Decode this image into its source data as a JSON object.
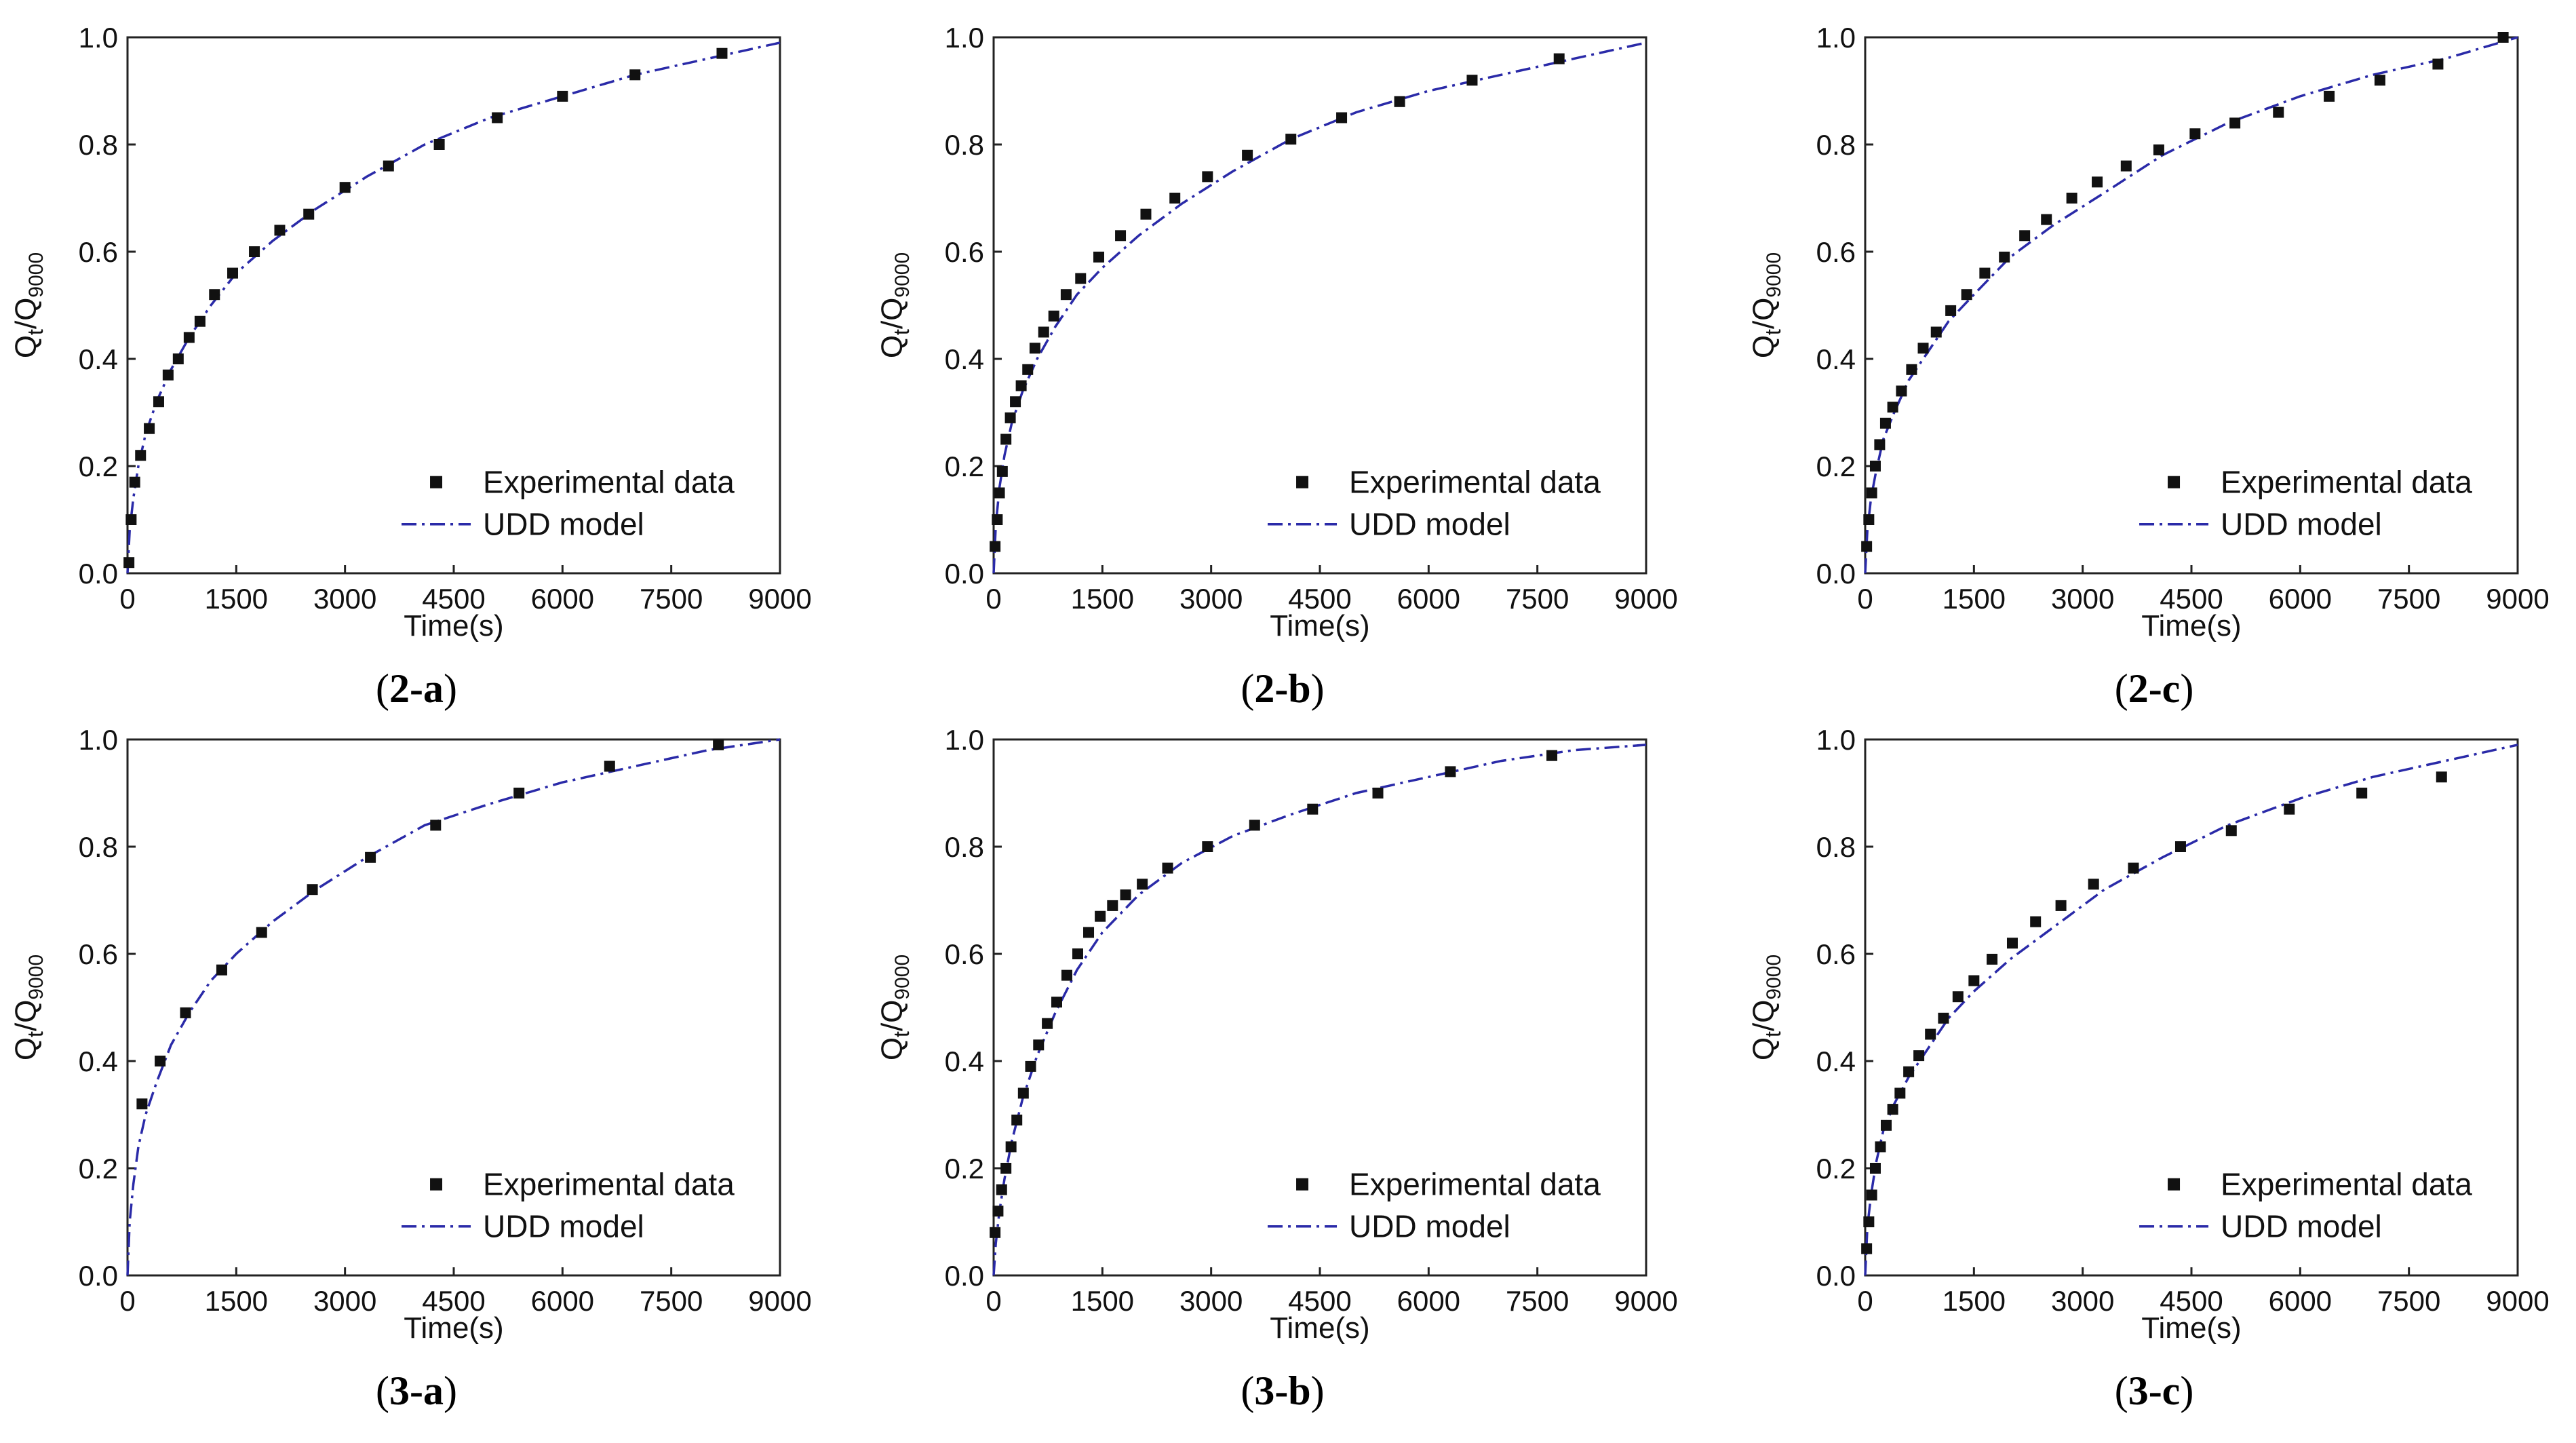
{
  "chart_data": [
    {
      "type": "scatter",
      "panel_label": "(2-a)",
      "xlabel": "Time(s)",
      "ylabel": "Qt/Q9000",
      "xlim": [
        0,
        9000
      ],
      "ylim": [
        0,
        1.0
      ],
      "xticks": [
        "0",
        "1500",
        "3000",
        "4500",
        "6000",
        "7500",
        "9000"
      ],
      "yticks": [
        "0.0",
        "0.2",
        "0.4",
        "0.6",
        "0.8",
        "1.0"
      ],
      "legend": {
        "position": "lower-right",
        "marker_label": "Experimental data",
        "line_label": "UDD model"
      },
      "series": [
        {
          "name": "Experimental data",
          "kind": "marker",
          "x": [
            20,
            50,
            100,
            180,
            300,
            430,
            560,
            700,
            850,
            1000,
            1200,
            1450,
            1750,
            2100,
            2500,
            3000,
            3600,
            4300,
            5100,
            6000,
            7000,
            8200
          ],
          "y": [
            0.02,
            0.1,
            0.17,
            0.22,
            0.27,
            0.32,
            0.37,
            0.4,
            0.44,
            0.47,
            0.52,
            0.56,
            0.6,
            0.64,
            0.67,
            0.72,
            0.76,
            0.8,
            0.85,
            0.89,
            0.93,
            0.97
          ]
        },
        {
          "name": "UDD model",
          "kind": "line",
          "x": [
            0,
            30,
            80,
            150,
            250,
            400,
            600,
            850,
            1150,
            1500,
            2000,
            2600,
            3300,
            4100,
            5000,
            6000,
            7000,
            8000,
            9000
          ],
          "y": [
            0.0,
            0.08,
            0.14,
            0.2,
            0.26,
            0.32,
            0.38,
            0.44,
            0.5,
            0.56,
            0.62,
            0.68,
            0.74,
            0.8,
            0.85,
            0.89,
            0.93,
            0.96,
            0.99
          ]
        }
      ]
    },
    {
      "type": "scatter",
      "panel_label": "(2-b)",
      "xlabel": "Time(s)",
      "ylabel": "Qt/Q9000",
      "xlim": [
        0,
        9000
      ],
      "ylim": [
        0,
        1.0
      ],
      "xticks": [
        "0",
        "1500",
        "3000",
        "4500",
        "6000",
        "7500",
        "9000"
      ],
      "yticks": [
        "0.0",
        "0.2",
        "0.4",
        "0.6",
        "0.8",
        "1.0"
      ],
      "legend": {
        "position": "lower-right",
        "marker_label": "Experimental data",
        "line_label": "UDD model"
      },
      "series": [
        {
          "name": "Experimental data",
          "kind": "marker",
          "x": [
            20,
            50,
            80,
            120,
            170,
            230,
            300,
            380,
            470,
            570,
            690,
            830,
            1000,
            1200,
            1450,
            1750,
            2100,
            2500,
            2950,
            3500,
            4100,
            4800,
            5600,
            6600,
            7800
          ],
          "y": [
            0.05,
            0.1,
            0.15,
            0.19,
            0.25,
            0.29,
            0.32,
            0.35,
            0.38,
            0.42,
            0.45,
            0.48,
            0.52,
            0.55,
            0.59,
            0.63,
            0.67,
            0.7,
            0.74,
            0.78,
            0.81,
            0.85,
            0.88,
            0.92,
            0.96
          ]
        },
        {
          "name": "UDD model",
          "kind": "line",
          "x": [
            0,
            30,
            80,
            150,
            250,
            400,
            600,
            850,
            1150,
            1500,
            2000,
            2600,
            3300,
            4100,
            5000,
            6000,
            7000,
            8000,
            9000
          ],
          "y": [
            0.0,
            0.09,
            0.16,
            0.22,
            0.28,
            0.34,
            0.4,
            0.46,
            0.52,
            0.57,
            0.63,
            0.69,
            0.75,
            0.81,
            0.86,
            0.9,
            0.93,
            0.96,
            0.99
          ]
        }
      ]
    },
    {
      "type": "scatter",
      "panel_label": "(2-c)",
      "xlabel": "Time(s)",
      "ylabel": "Qt/Q9000",
      "xlim": [
        0,
        9000
      ],
      "ylim": [
        0,
        1.0
      ],
      "xticks": [
        "0",
        "1500",
        "3000",
        "4500",
        "6000",
        "7500",
        "9000"
      ],
      "yticks": [
        "0.0",
        "0.2",
        "0.4",
        "0.6",
        "0.8",
        "1.0"
      ],
      "legend": {
        "position": "lower-right",
        "marker_label": "Experimental data",
        "line_label": "UDD model"
      },
      "series": [
        {
          "name": "Experimental data",
          "kind": "marker",
          "x": [
            20,
            50,
            90,
            140,
            200,
            280,
            380,
            500,
            640,
            800,
            980,
            1180,
            1400,
            1650,
            1920,
            2200,
            2500,
            2850,
            3200,
            3600,
            4050,
            4550,
            5100,
            5700,
            6400,
            7100,
            7900,
            8800
          ],
          "y": [
            0.05,
            0.1,
            0.15,
            0.2,
            0.24,
            0.28,
            0.31,
            0.34,
            0.38,
            0.42,
            0.45,
            0.49,
            0.52,
            0.56,
            0.59,
            0.63,
            0.66,
            0.7,
            0.73,
            0.76,
            0.79,
            0.82,
            0.84,
            0.86,
            0.89,
            0.92,
            0.95,
            1.0
          ]
        },
        {
          "name": "UDD model",
          "kind": "line",
          "x": [
            0,
            30,
            80,
            150,
            250,
            400,
            600,
            850,
            1150,
            1500,
            2000,
            2600,
            3300,
            4100,
            5000,
            6000,
            7000,
            8000,
            9000
          ],
          "y": [
            0.0,
            0.08,
            0.14,
            0.19,
            0.25,
            0.3,
            0.36,
            0.41,
            0.47,
            0.52,
            0.59,
            0.65,
            0.71,
            0.78,
            0.84,
            0.89,
            0.93,
            0.96,
            1.0
          ]
        }
      ]
    },
    {
      "type": "scatter",
      "panel_label": "(3-a)",
      "xlabel": "Time(s)",
      "ylabel": "Qt/Q9000",
      "xlim": [
        0,
        9000
      ],
      "ylim": [
        0,
        1.0
      ],
      "xticks": [
        "0",
        "1500",
        "3000",
        "4500",
        "6000",
        "7500",
        "9000"
      ],
      "yticks": [
        "0.0",
        "0.2",
        "0.4",
        "0.6",
        "0.8",
        "1.0"
      ],
      "legend": {
        "position": "lower-right",
        "marker_label": "Experimental data",
        "line_label": "UDD model"
      },
      "series": [
        {
          "name": "Experimental data",
          "kind": "marker",
          "x": [
            200,
            450,
            800,
            1300,
            1850,
            2550,
            3350,
            4250,
            5400,
            6650,
            8150
          ],
          "y": [
            0.32,
            0.4,
            0.49,
            0.57,
            0.64,
            0.72,
            0.78,
            0.84,
            0.9,
            0.95,
            0.99
          ]
        },
        {
          "name": "UDD model",
          "kind": "line",
          "x": [
            0,
            30,
            80,
            150,
            250,
            400,
            600,
            850,
            1150,
            1500,
            2000,
            2600,
            3300,
            4100,
            5000,
            6000,
            7000,
            8000,
            9000
          ],
          "y": [
            0.0,
            0.1,
            0.17,
            0.24,
            0.3,
            0.36,
            0.43,
            0.49,
            0.55,
            0.6,
            0.66,
            0.72,
            0.78,
            0.84,
            0.88,
            0.92,
            0.95,
            0.98,
            1.0
          ]
        }
      ]
    },
    {
      "type": "scatter",
      "panel_label": "(3-b)",
      "xlabel": "Time(s)",
      "ylabel": "Qt/Q9000",
      "xlim": [
        0,
        9000
      ],
      "ylim": [
        0,
        1.0
      ],
      "xticks": [
        "0",
        "1500",
        "3000",
        "4500",
        "6000",
        "7500",
        "9000"
      ],
      "yticks": [
        "0.0",
        "0.2",
        "0.4",
        "0.6",
        "0.8",
        "1.0"
      ],
      "legend": {
        "position": "lower-right",
        "marker_label": "Experimental data",
        "line_label": "UDD model"
      },
      "series": [
        {
          "name": "Experimental data",
          "kind": "marker",
          "x": [
            20,
            60,
            110,
            170,
            240,
            320,
            410,
            510,
            620,
            740,
            870,
            1010,
            1160,
            1310,
            1470,
            1640,
            1820,
            2050,
            2400,
            2950,
            3600,
            4400,
            5300,
            6300,
            7700
          ],
          "y": [
            0.08,
            0.12,
            0.16,
            0.2,
            0.24,
            0.29,
            0.34,
            0.39,
            0.43,
            0.47,
            0.51,
            0.56,
            0.6,
            0.64,
            0.67,
            0.69,
            0.71,
            0.73,
            0.76,
            0.8,
            0.84,
            0.87,
            0.9,
            0.94,
            0.97
          ]
        },
        {
          "name": "UDD model",
          "kind": "line",
          "x": [
            0,
            30,
            80,
            150,
            250,
            400,
            600,
            850,
            1150,
            1500,
            2000,
            2600,
            3300,
            4100,
            5000,
            6000,
            7000,
            8000,
            9000
          ],
          "y": [
            0.0,
            0.06,
            0.12,
            0.18,
            0.25,
            0.33,
            0.41,
            0.49,
            0.57,
            0.64,
            0.71,
            0.77,
            0.82,
            0.86,
            0.9,
            0.93,
            0.96,
            0.98,
            0.99
          ]
        }
      ]
    },
    {
      "type": "scatter",
      "panel_label": "(3-c)",
      "xlabel": "Time(s)",
      "ylabel": "Qt/Q9000",
      "xlim": [
        0,
        9000
      ],
      "ylim": [
        0,
        1.0
      ],
      "xticks": [
        "0",
        "1500",
        "3000",
        "4500",
        "6000",
        "7500",
        "9000"
      ],
      "yticks": [
        "0.0",
        "0.2",
        "0.4",
        "0.6",
        "0.8",
        "1.0"
      ],
      "legend": {
        "position": "lower-right",
        "marker_label": "Experimental data",
        "line_label": "UDD model"
      },
      "series": [
        {
          "name": "Experimental data",
          "kind": "marker",
          "x": [
            20,
            50,
            90,
            140,
            210,
            290,
            380,
            480,
            600,
            740,
            900,
            1080,
            1280,
            1500,
            1750,
            2030,
            2350,
            2700,
            3150,
            3700,
            4350,
            5050,
            5850,
            6850,
            7950
          ],
          "y": [
            0.05,
            0.1,
            0.15,
            0.2,
            0.24,
            0.28,
            0.31,
            0.34,
            0.38,
            0.41,
            0.45,
            0.48,
            0.52,
            0.55,
            0.59,
            0.62,
            0.66,
            0.69,
            0.73,
            0.76,
            0.8,
            0.83,
            0.87,
            0.9,
            0.93
          ]
        },
        {
          "name": "UDD model",
          "kind": "line",
          "x": [
            0,
            30,
            80,
            150,
            250,
            400,
            600,
            850,
            1150,
            1500,
            2000,
            2600,
            3300,
            4100,
            5000,
            6000,
            7000,
            8000,
            9000
          ],
          "y": [
            0.0,
            0.09,
            0.15,
            0.21,
            0.27,
            0.32,
            0.37,
            0.42,
            0.48,
            0.53,
            0.59,
            0.65,
            0.72,
            0.78,
            0.84,
            0.89,
            0.93,
            0.96,
            0.99
          ]
        }
      ]
    }
  ]
}
